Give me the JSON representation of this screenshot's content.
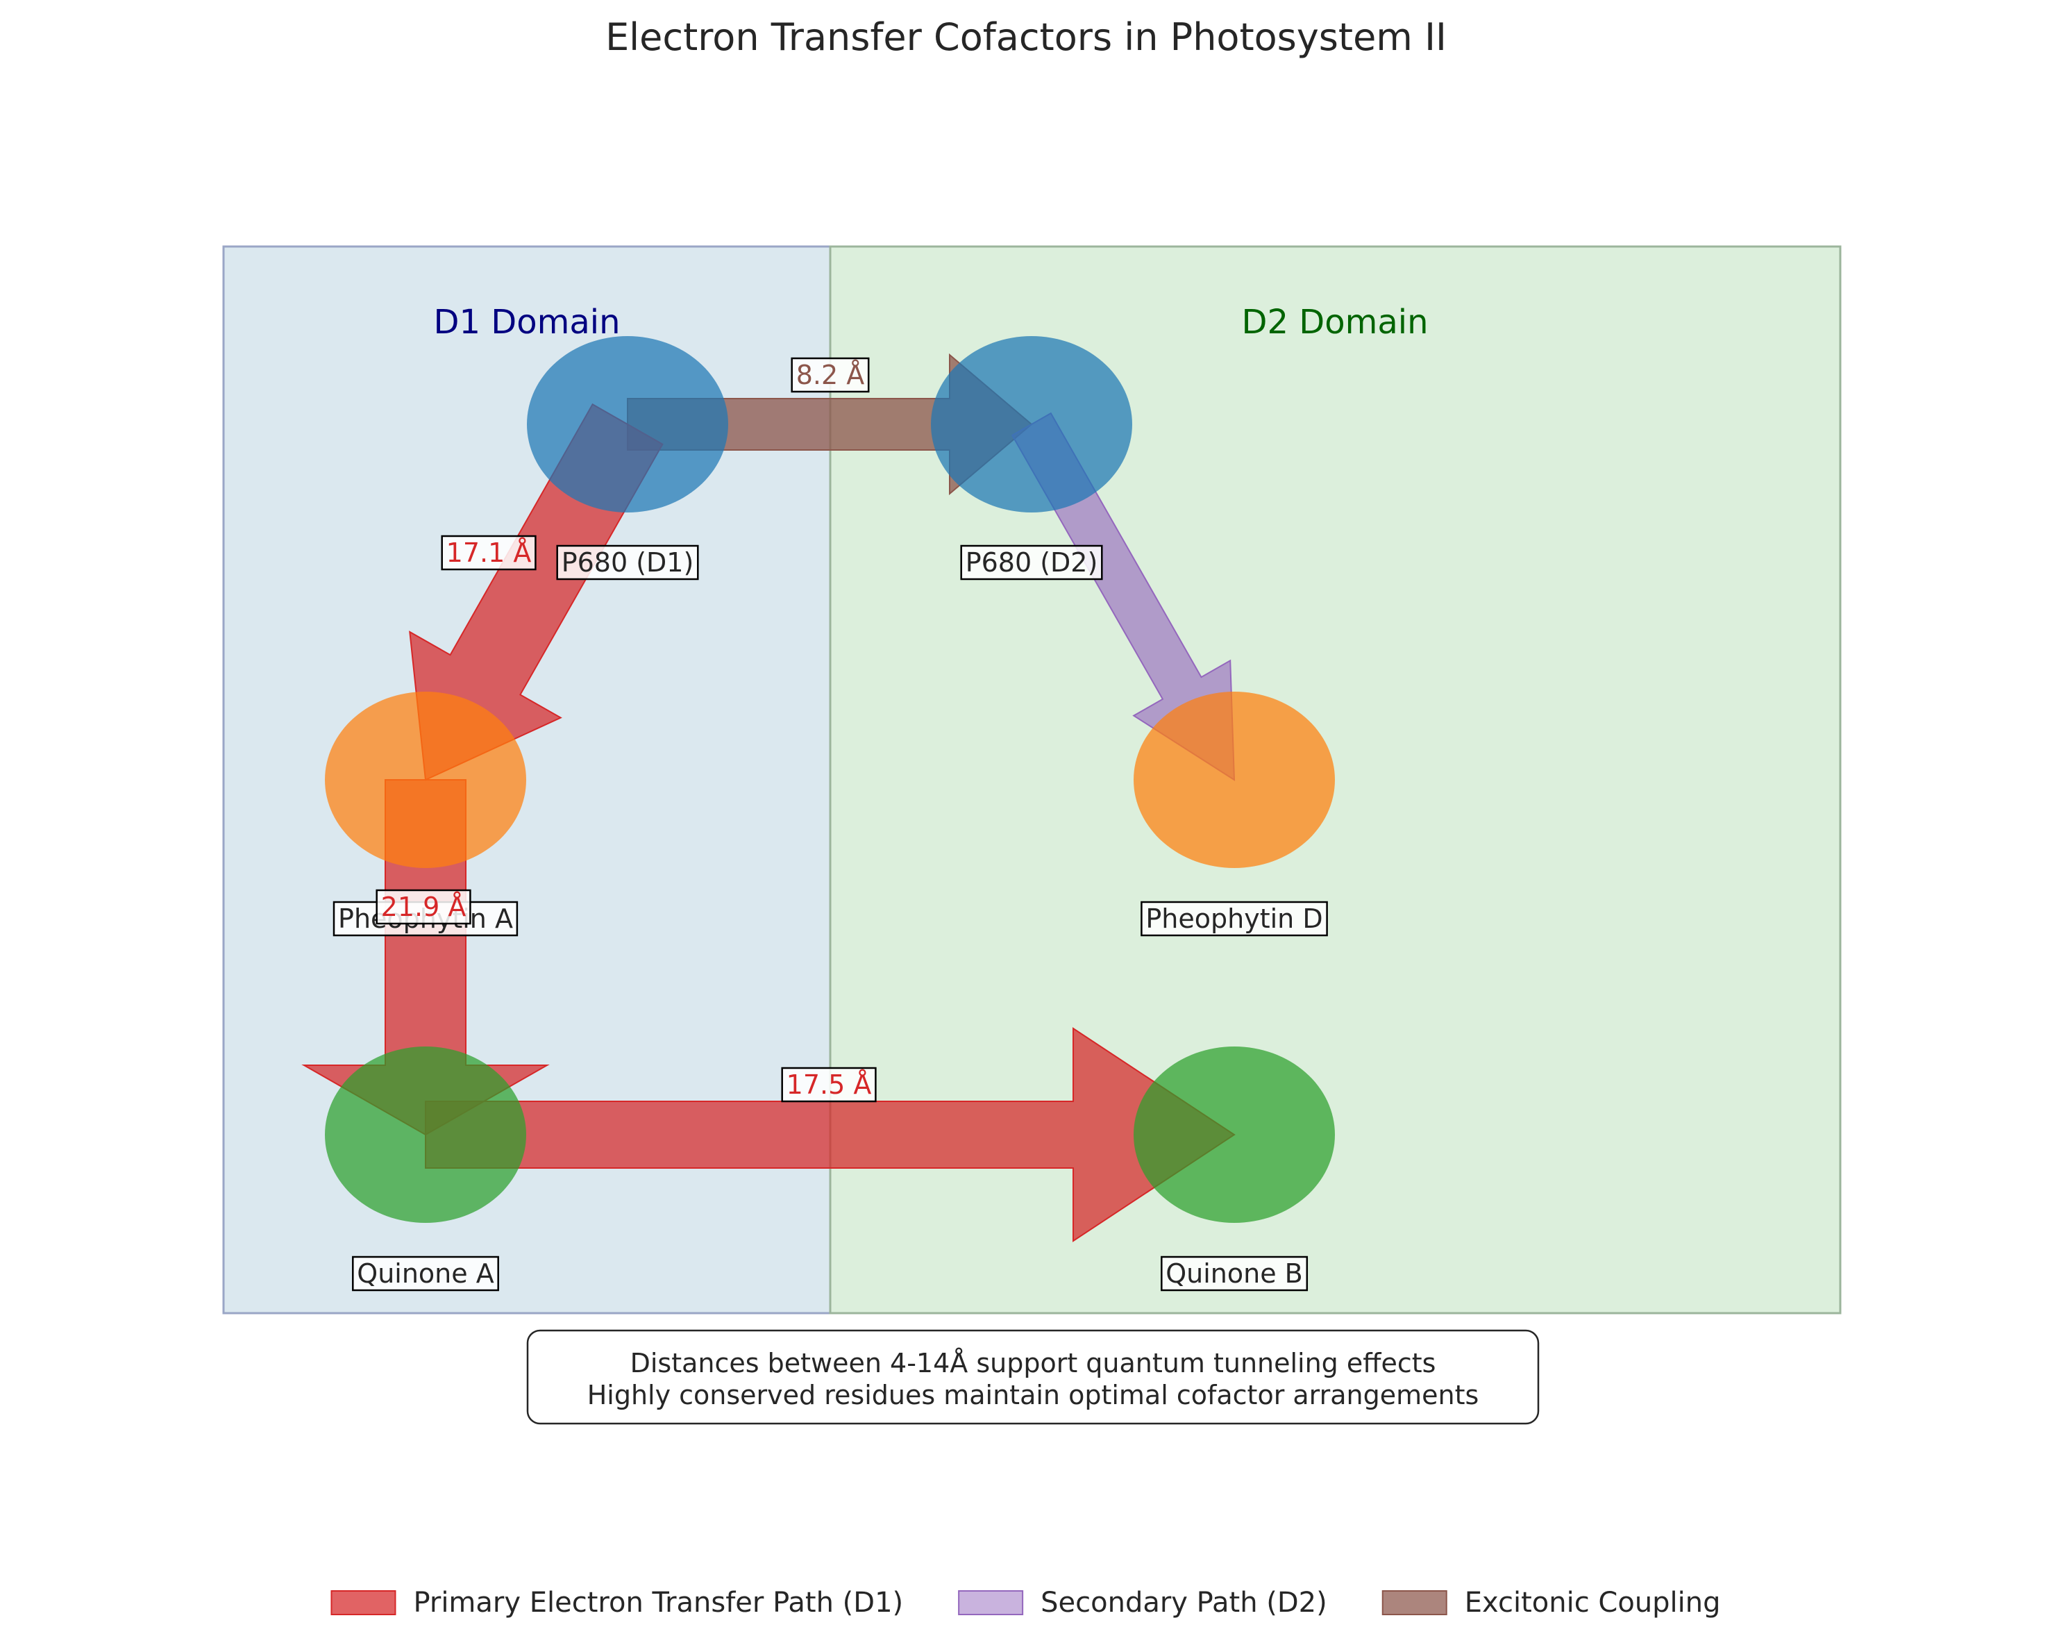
{
  "title": "Electron Transfer Cofactors in Photosystem II",
  "domains": [
    {
      "id": "d1",
      "label": "D1 Domain",
      "fill": "#dbe8ef",
      "stroke": "#9aa6c6",
      "text_color": "#000080"
    },
    {
      "id": "d2",
      "label": "D2 Domain",
      "fill": "#dcefdc",
      "stroke": "#9cb59c",
      "text_color": "#006400"
    }
  ],
  "cofactors": [
    {
      "id": "p680_d1",
      "label": "P680 (D1)",
      "color": "#1f77b4"
    },
    {
      "id": "p680_d2",
      "label": "P680 (D2)",
      "color": "#1f77b4"
    },
    {
      "id": "pheo_a",
      "label": "Pheophytin A",
      "color": "#ff7f0e"
    },
    {
      "id": "pheo_d",
      "label": "Pheophytin D",
      "color": "#ff7f0e"
    },
    {
      "id": "quinone_a",
      "label": "Quinone A",
      "color": "#2ca02c"
    },
    {
      "id": "quinone_b",
      "label": "Quinone B",
      "color": "#2ca02c"
    }
  ],
  "transfers": [
    {
      "id": "t1",
      "from": "p680_d1",
      "to": "pheo_a",
      "type": "primary",
      "distance": "17.1 Å"
    },
    {
      "id": "t2",
      "from": "pheo_a",
      "to": "quinone_a",
      "type": "primary",
      "distance": "21.9 Å"
    },
    {
      "id": "t3",
      "from": "quinone_a",
      "to": "quinone_b",
      "type": "primary",
      "distance": "17.5 Å"
    },
    {
      "id": "t4",
      "from": "p680_d2",
      "to": "pheo_d",
      "type": "secondary",
      "distance": ""
    },
    {
      "id": "t5",
      "from": "p680_d1",
      "to": "p680_d2",
      "type": "excitonic",
      "distance": "8.2 Å"
    }
  ],
  "path_styles": {
    "primary": {
      "color": "#d62728",
      "label": "Primary Electron Transfer Path (D1)"
    },
    "secondary": {
      "color": "#9467bd",
      "label": "Secondary Path (D2)"
    },
    "excitonic": {
      "color": "#8c564b",
      "label": "Excitonic Coupling"
    }
  },
  "note": {
    "lines": [
      "Distances between 4-14Å support quantum tunneling effects",
      "Highly conserved residues maintain optimal cofactor arrangements"
    ]
  },
  "legend": {
    "placement": "bottom-center",
    "order": [
      "primary",
      "secondary",
      "excitonic"
    ]
  }
}
